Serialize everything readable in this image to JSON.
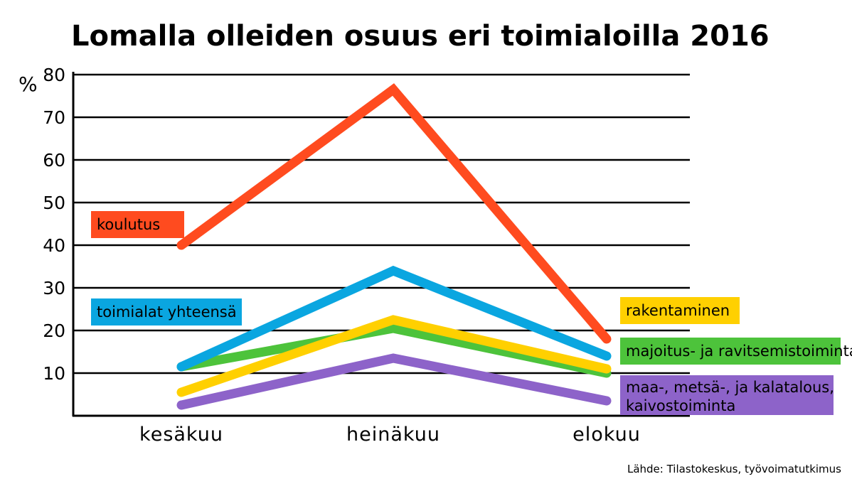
{
  "chart_data": {
    "type": "line",
    "title": "Lomalla olleiden osuus eri toimialoilla 2016",
    "ylabel": "%",
    "categories": [
      "kesäkuu",
      "heinäkuu",
      "elokuu"
    ],
    "ylim": [
      0,
      80
    ],
    "yticks": [
      10,
      20,
      30,
      40,
      50,
      60,
      70,
      80
    ],
    "grid": true,
    "series": [
      {
        "name": "koulutus",
        "values": [
          40,
          76.5,
          18
        ],
        "color": "#ff4b1f"
      },
      {
        "name": "toimialat yhteensä",
        "values": [
          11.5,
          34,
          14
        ],
        "color": "#0aa6e0"
      },
      {
        "name": "rakentaminen",
        "values": [
          5.5,
          22.5,
          11
        ],
        "color": "#ffd000"
      },
      {
        "name": "majoitus- ja ravitsemistoiminta",
        "values": [
          11.5,
          20.5,
          10
        ],
        "color": "#4dc33b"
      },
      {
        "name": "maa-, metsä-, ja kalatalous, kaivostoiminta",
        "values": [
          2.5,
          13.5,
          3.5
        ],
        "color": "#8d63c9"
      }
    ],
    "source": "Lähde: Tilastokeskus, työvoimatutkimus"
  }
}
